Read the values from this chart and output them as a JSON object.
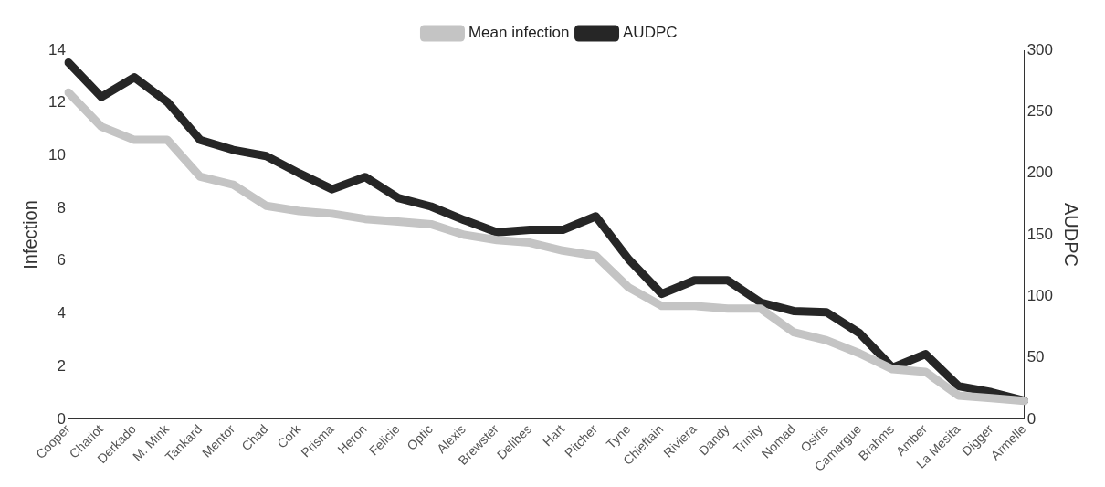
{
  "chart_data": {
    "type": "line",
    "ylabel": "Infection",
    "y2label": "AUDPC",
    "categories": [
      "Cooper",
      "Chariot",
      "Derkado",
      "M. Mink",
      "Tankard",
      "Mentor",
      "Chad",
      "Cork",
      "Prisma",
      "Heron",
      "Felicie",
      "Optic",
      "Alexis",
      "Brewster",
      "Delibes",
      "Hart",
      "Pitcher",
      "Tyne",
      "Chieftain",
      "Riviera",
      "Dandy",
      "Trinity",
      "Nomad",
      "Osiris",
      "Camargue",
      "Brahms",
      "Amber",
      "La Mesita",
      "Digger",
      "Armelle"
    ],
    "series": [
      {
        "name": "Mean infection",
        "color": "#c4c4c4",
        "values": [
          12.4,
          11.1,
          10.6,
          10.6,
          9.2,
          8.9,
          8.1,
          7.9,
          7.8,
          7.6,
          7.5,
          7.4,
          7.0,
          6.8,
          6.7,
          6.4,
          6.2,
          5.0,
          4.3,
          4.3,
          4.2,
          4.2,
          3.3,
          3.0,
          2.5,
          1.9,
          1.8,
          0.9,
          0.8,
          0.7
        ]
      },
      {
        "name": "AUDPC",
        "color": "#262626",
        "axis": "y2",
        "values": [
          290,
          262,
          278,
          258,
          227,
          219,
          214,
          200,
          187,
          197,
          180,
          173,
          162,
          152,
          154,
          154,
          165,
          130,
          102,
          113,
          113,
          95,
          88,
          87,
          70,
          42,
          53,
          27,
          22,
          15
        ]
      }
    ],
    "ylim": [
      0,
      14
    ],
    "yticks": [
      0,
      2,
      4,
      6,
      8,
      10,
      12,
      14
    ],
    "y2lim": [
      0,
      300
    ],
    "y2ticks": [
      0,
      50,
      100,
      150,
      200,
      250,
      300
    ],
    "legend": "top",
    "marker": "none",
    "line_style": "solid"
  }
}
